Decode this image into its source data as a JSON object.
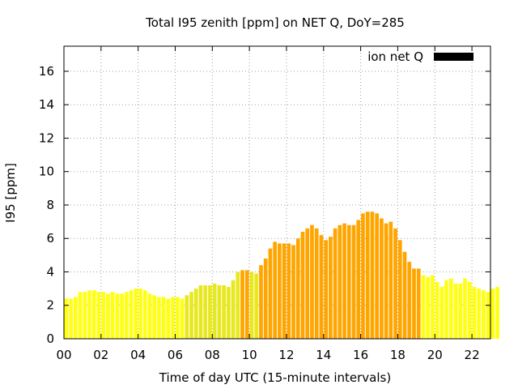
{
  "chart_data": {
    "type": "bar",
    "title": "Total I95 zenith [ppm] on NET Q, DoY=285",
    "xlabel": "Time of day UTC (15-minute intervals)",
    "ylabel": "I95 [ppm]",
    "xlim": [
      0,
      23
    ],
    "ylim": [
      0,
      17.5
    ],
    "x_ticks": [
      "00",
      "02",
      "04",
      "06",
      "08",
      "10",
      "12",
      "14",
      "16",
      "18",
      "20",
      "22"
    ],
    "y_ticks": [
      "0",
      "2",
      "4",
      "6",
      "8",
      "10",
      "12",
      "14",
      "16"
    ],
    "grid": true,
    "legend": {
      "label": "ion net Q",
      "color": "#000000",
      "placement": "top-right"
    },
    "bar_interval_hours": 0.25,
    "colors": {
      "low": "#ffff14",
      "mid": "#e8e820",
      "high": "#ffa500"
    },
    "values": [
      2.4,
      2.4,
      2.5,
      2.8,
      2.8,
      2.9,
      2.9,
      2.8,
      2.8,
      2.7,
      2.8,
      2.7,
      2.7,
      2.8,
      2.9,
      3.0,
      3.0,
      2.9,
      2.7,
      2.6,
      2.5,
      2.5,
      2.4,
      2.5,
      2.5,
      2.4,
      2.6,
      2.8,
      3.0,
      3.2,
      3.2,
      3.2,
      3.3,
      3.2,
      3.2,
      3.1,
      3.5,
      4.0,
      4.1,
      4.1,
      4.0,
      3.9,
      4.4,
      4.8,
      5.4,
      5.8,
      5.7,
      5.7,
      5.7,
      5.6,
      6.0,
      6.4,
      6.6,
      6.8,
      6.6,
      6.2,
      5.9,
      6.1,
      6.6,
      6.8,
      6.9,
      6.8,
      6.8,
      7.1,
      7.5,
      7.6,
      7.6,
      7.5,
      7.2,
      6.9,
      7.0,
      6.6,
      5.9,
      5.2,
      4.6,
      4.2,
      4.2,
      3.8,
      3.7,
      3.8,
      3.4,
      3.1,
      3.5,
      3.6,
      3.3,
      3.3,
      3.6,
      3.4,
      3.1,
      3.0,
      2.9,
      2.8,
      3.0,
      3.1
    ],
    "series_color_levels": [
      "low",
      "low",
      "low",
      "low",
      "low",
      "low",
      "low",
      "low",
      "low",
      "low",
      "low",
      "low",
      "low",
      "low",
      "low",
      "low",
      "low",
      "low",
      "low",
      "low",
      "low",
      "low",
      "low",
      "low",
      "low",
      "low",
      "mid",
      "mid",
      "mid",
      "mid",
      "mid",
      "mid",
      "mid",
      "mid",
      "mid",
      "mid",
      "mid",
      "mid",
      "high",
      "high",
      "mid",
      "mid",
      "high",
      "high",
      "high",
      "high",
      "high",
      "high",
      "high",
      "high",
      "high",
      "high",
      "high",
      "high",
      "high",
      "high",
      "high",
      "high",
      "high",
      "high",
      "high",
      "high",
      "high",
      "high",
      "high",
      "high",
      "high",
      "high",
      "high",
      "high",
      "high",
      "high",
      "high",
      "high",
      "high",
      "high",
      "high",
      "low",
      "low",
      "low",
      "low",
      "low",
      "low",
      "low",
      "low",
      "low",
      "low",
      "low",
      "low",
      "low",
      "low",
      "low",
      "low",
      "low"
    ]
  }
}
